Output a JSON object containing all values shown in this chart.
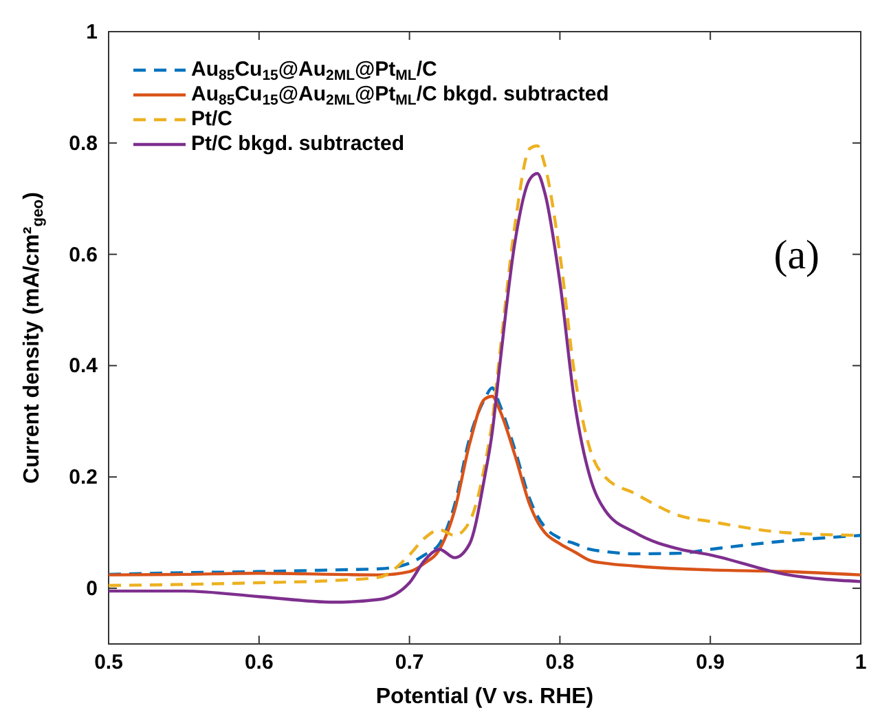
{
  "chart_data": {
    "type": "line",
    "xlabel": "Potential (V vs. RHE)",
    "ylabel": "Current density (mA/cm²$_{geo}$)",
    "annotations": [
      "(a)"
    ],
    "xlim": [
      0.5,
      1
    ],
    "ylim": [
      -0.1,
      1
    ],
    "xticks": [
      0.5,
      0.6,
      0.7,
      0.8,
      0.9,
      1
    ],
    "yticks": [
      0,
      0.2,
      0.4,
      0.6,
      0.8,
      1
    ],
    "grid": false,
    "legend": "top left",
    "x": [
      0.5,
      0.55,
      0.6,
      0.65,
      0.68,
      0.7,
      0.71,
      0.72,
      0.73,
      0.74,
      0.75,
      0.755,
      0.76,
      0.77,
      0.78,
      0.785,
      0.79,
      0.8,
      0.81,
      0.82,
      0.83,
      0.85,
      0.88,
      0.9,
      0.95,
      1.0
    ],
    "series": [
      {
        "name": "Au$_{85}$Cu$_{15}$@Au$_{2ML}$@Pt$_{ML}$/C",
        "color": "#0072bd",
        "line_style": "dashed",
        "values": [
          0.025,
          0.028,
          0.03,
          0.033,
          0.035,
          0.045,
          0.06,
          0.08,
          0.15,
          0.27,
          0.34,
          0.36,
          0.33,
          0.25,
          0.16,
          0.13,
          0.11,
          0.09,
          0.08,
          0.07,
          0.066,
          0.062,
          0.063,
          0.07,
          0.085,
          0.095
        ]
      },
      {
        "name": "Au$_{85}$Cu$_{15}$@Au$_{2ML}$@Pt$_{ML}$/C bkgd. subtracted",
        "color": "#d95319",
        "line_style": "solid",
        "values": [
          0.024,
          0.025,
          0.027,
          0.025,
          0.024,
          0.03,
          0.045,
          0.07,
          0.14,
          0.26,
          0.34,
          0.345,
          0.32,
          0.24,
          0.15,
          0.12,
          0.1,
          0.08,
          0.065,
          0.05,
          0.045,
          0.04,
          0.035,
          0.033,
          0.03,
          0.024
        ]
      },
      {
        "name": "Pt/C",
        "color": "#edb120",
        "line_style": "dashed",
        "values": [
          0.005,
          0.007,
          0.01,
          0.014,
          0.02,
          0.06,
          0.09,
          0.105,
          0.095,
          0.12,
          0.22,
          0.3,
          0.42,
          0.65,
          0.79,
          0.795,
          0.76,
          0.6,
          0.38,
          0.25,
          0.2,
          0.17,
          0.13,
          0.12,
          0.1,
          0.095
        ]
      },
      {
        "name": "Pt/C bkgd. subtracted",
        "color": "#7e2f8e",
        "line_style": "solid",
        "values": [
          -0.005,
          -0.005,
          -0.015,
          -0.025,
          -0.02,
          0.01,
          0.05,
          0.07,
          0.055,
          0.08,
          0.2,
          0.28,
          0.4,
          0.62,
          0.735,
          0.745,
          0.71,
          0.55,
          0.33,
          0.2,
          0.14,
          0.1,
          0.07,
          0.06,
          0.025,
          0.012
        ]
      }
    ]
  }
}
